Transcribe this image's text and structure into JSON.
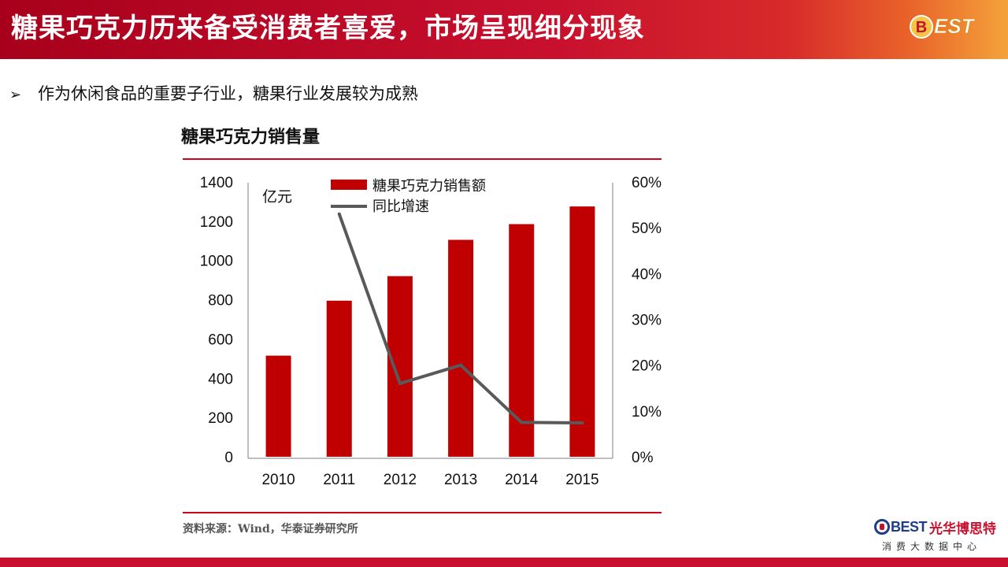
{
  "header": {
    "title": "糖果巧克力历来备受消费者喜爱，市场呈现细分现象",
    "logo_text": "BEST"
  },
  "bullet": {
    "icon": "arrow-bullet-icon",
    "text": "作为休闲食品的重要子行业，糖果行业发展较为成熟"
  },
  "chart_data": {
    "type": "bar",
    "title": "糖果巧克力销售量",
    "unit_label": "亿元",
    "categories": [
      "2010",
      "2011",
      "2012",
      "2013",
      "2014",
      "2015"
    ],
    "series": [
      {
        "name": "糖果巧克力销售额",
        "type": "bar",
        "axis": "left",
        "color": "#c00000",
        "values": [
          515,
          795,
          920,
          1105,
          1185,
          1275
        ]
      },
      {
        "name": "同比增速",
        "type": "line",
        "axis": "right",
        "color": "#595959",
        "values": [
          null,
          53.0,
          16.0,
          20.0,
          7.5,
          7.4
        ]
      }
    ],
    "left_axis": {
      "ylim": [
        0,
        1400
      ],
      "ticks": [
        "0",
        "200",
        "400",
        "600",
        "800",
        "1000",
        "1200",
        "1400"
      ]
    },
    "right_axis": {
      "ylim": [
        0,
        60
      ],
      "ticks": [
        "0%",
        "10%",
        "20%",
        "30%",
        "40%",
        "50%",
        "60%"
      ]
    },
    "legend_position": "top-center"
  },
  "source": "资料来源：Wind，华泰证券研究所",
  "footer": {
    "brand_logo": "BEST",
    "brand_name": "光华博思特",
    "tagline": "消费大数据中心"
  },
  "colors": {
    "banner_red": "#c8102e",
    "bar_red": "#c00000",
    "line_gray": "#595959",
    "rule_red": "#d0021b"
  }
}
